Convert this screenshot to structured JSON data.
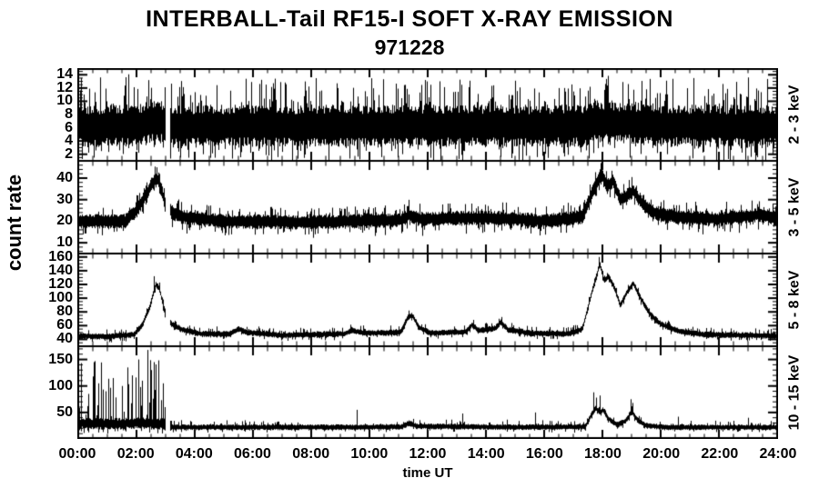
{
  "chart_data": {
    "type": "line",
    "title": "INTERBALL-Tail RF15-I SOFT X-RAY EMISSION",
    "subtitle": "971228",
    "ylabel": "count rate",
    "xlabel": "time UT",
    "background": "#ffffff",
    "trace_color": "#000000",
    "grid": false,
    "xlim_hours": [
      0,
      24
    ],
    "x_major_step_hours": 2,
    "x_minor_step_hours": 0.5,
    "x_tick_labels": [
      "00:00",
      "02:00",
      "04:00",
      "06:00",
      "08:00",
      "10:00",
      "12:00",
      "14:00",
      "16:00",
      "18:00",
      "20:00",
      "22:00",
      "24:00"
    ],
    "data_gaps_hours": [
      [
        2.97,
        3.14
      ]
    ],
    "panels": [
      {
        "band": "2 - 3 keV",
        "ylim": [
          1,
          15
        ],
        "yticks": [
          2,
          4,
          6,
          8,
          10,
          12,
          14
        ],
        "y_minor_step": 0.5,
        "noise_half": 3.2,
        "up_prob": 0.34,
        "up_scale": 4.8,
        "down_prob": 0.3,
        "down_scale": 3.0,
        "profile": [
          [
            0,
            6.2
          ],
          [
            2.1,
            6.4
          ],
          [
            2.5,
            7.0
          ],
          [
            2.9,
            6.8
          ],
          [
            3.2,
            6.3
          ],
          [
            17.4,
            6.3
          ],
          [
            17.9,
            6.9
          ],
          [
            18.4,
            6.7
          ],
          [
            19.0,
            6.8
          ],
          [
            19.5,
            6.4
          ],
          [
            24,
            6.2
          ]
        ],
        "spikes": []
      },
      {
        "band": "3 - 5 keV",
        "ylim": [
          5,
          48
        ],
        "yticks": [
          10,
          20,
          30,
          40
        ],
        "y_minor_step": 2,
        "noise_half": 3.4,
        "up_prob": 0.3,
        "up_scale": 4.5,
        "down_prob": 0.3,
        "down_scale": 4.5,
        "profile": [
          [
            0,
            20
          ],
          [
            1.6,
            20
          ],
          [
            2.0,
            25
          ],
          [
            2.3,
            32
          ],
          [
            2.55,
            38
          ],
          [
            2.7,
            40
          ],
          [
            2.85,
            34
          ],
          [
            3.0,
            27
          ],
          [
            3.2,
            24
          ],
          [
            3.6,
            22
          ],
          [
            5,
            20
          ],
          [
            8,
            19.5
          ],
          [
            9.5,
            20
          ],
          [
            11.1,
            20.5
          ],
          [
            11.35,
            23
          ],
          [
            11.7,
            21
          ],
          [
            13.4,
            21.5
          ],
          [
            14.5,
            21.5
          ],
          [
            16,
            20
          ],
          [
            17.3,
            22
          ],
          [
            17.6,
            32
          ],
          [
            17.95,
            42
          ],
          [
            18.15,
            36
          ],
          [
            18.35,
            39
          ],
          [
            18.6,
            30
          ],
          [
            18.85,
            32
          ],
          [
            19.05,
            34
          ],
          [
            19.35,
            28
          ],
          [
            19.8,
            24
          ],
          [
            20.5,
            22
          ],
          [
            22,
            21
          ],
          [
            23.4,
            23
          ],
          [
            24,
            21
          ]
        ],
        "spikes": [
          [
            17.93,
            47
          ],
          [
            2.68,
            45
          ]
        ]
      },
      {
        "band": "5 - 8 keV",
        "ylim": [
          30,
          165
        ],
        "yticks": [
          40,
          60,
          80,
          100,
          120,
          140,
          160
        ],
        "y_minor_step": 5,
        "noise_half": 4.5,
        "up_prob": 0.28,
        "up_scale": 7,
        "down_prob": 0.28,
        "down_scale": 5,
        "profile": [
          [
            0,
            45
          ],
          [
            1.0,
            44
          ],
          [
            1.9,
            47
          ],
          [
            2.2,
            62
          ],
          [
            2.45,
            88
          ],
          [
            2.65,
            120
          ],
          [
            2.78,
            113
          ],
          [
            3.0,
            70
          ],
          [
            3.2,
            62
          ],
          [
            3.5,
            55
          ],
          [
            4.2,
            48
          ],
          [
            5.2,
            48
          ],
          [
            5.5,
            55
          ],
          [
            5.8,
            50
          ],
          [
            7,
            46
          ],
          [
            9.1,
            48
          ],
          [
            9.4,
            53
          ],
          [
            9.8,
            49
          ],
          [
            11.05,
            50
          ],
          [
            11.3,
            72
          ],
          [
            11.45,
            75
          ],
          [
            11.7,
            57
          ],
          [
            12.1,
            49
          ],
          [
            13.3,
            51
          ],
          [
            13.5,
            61
          ],
          [
            13.75,
            53
          ],
          [
            14.3,
            56
          ],
          [
            14.5,
            65
          ],
          [
            14.75,
            54
          ],
          [
            15.5,
            49
          ],
          [
            16.8,
            48
          ],
          [
            17.3,
            55
          ],
          [
            17.6,
            105
          ],
          [
            17.9,
            150
          ],
          [
            18.05,
            125
          ],
          [
            18.2,
            132
          ],
          [
            18.4,
            115
          ],
          [
            18.6,
            90
          ],
          [
            18.85,
            110
          ],
          [
            19.05,
            122
          ],
          [
            19.3,
            100
          ],
          [
            19.6,
            78
          ],
          [
            20.0,
            62
          ],
          [
            20.6,
            52
          ],
          [
            21.5,
            47
          ],
          [
            24,
            45
          ]
        ],
        "spikes": [
          [
            17.88,
            160
          ],
          [
            2.6,
            132
          ],
          [
            11.35,
            82
          ]
        ]
      },
      {
        "band": "10 - 15 keV",
        "ylim": [
          0,
          175
        ],
        "yticks": [
          50,
          100,
          150
        ],
        "y_minor_step": 10,
        "noise_half": 5.5,
        "up_prob": 0.22,
        "up_scale": 9,
        "down_prob": 0.2,
        "down_scale": 6,
        "profile": [
          [
            0,
            30
          ],
          [
            1,
            28
          ],
          [
            2,
            30
          ],
          [
            3.0,
            28
          ],
          [
            3.15,
            22
          ],
          [
            9.4,
            22
          ],
          [
            11.1,
            23
          ],
          [
            11.35,
            30
          ],
          [
            11.6,
            24
          ],
          [
            15,
            22
          ],
          [
            17.4,
            23
          ],
          [
            17.6,
            45
          ],
          [
            17.75,
            58
          ],
          [
            17.9,
            50
          ],
          [
            18.0,
            55
          ],
          [
            18.2,
            38
          ],
          [
            18.5,
            26
          ],
          [
            18.8,
            35
          ],
          [
            19.0,
            52
          ],
          [
            19.2,
            35
          ],
          [
            19.5,
            25
          ],
          [
            20.2,
            22
          ],
          [
            24,
            22
          ]
        ],
        "spiky_region": {
          "t0": 0,
          "t1": 3.0,
          "half": 11,
          "up_prob": 0.5,
          "up_scale": 125,
          "up_pow": 2.0,
          "down_prob": 0.35,
          "down_scale": 10
        },
        "spikes": [
          [
            0.35,
            85
          ],
          [
            0.7,
            105
          ],
          [
            0.95,
            90
          ],
          [
            1.2,
            115
          ],
          [
            1.5,
            100
          ],
          [
            1.7,
            135
          ],
          [
            1.85,
            120
          ],
          [
            2.05,
            150
          ],
          [
            2.2,
            110
          ],
          [
            2.38,
            168
          ],
          [
            2.5,
            130
          ],
          [
            2.6,
            145
          ],
          [
            2.75,
            125
          ],
          [
            2.9,
            105
          ],
          [
            9.55,
            55
          ],
          [
            13.2,
            48
          ],
          [
            15.7,
            50
          ],
          [
            17.7,
            88
          ],
          [
            17.78,
            78
          ],
          [
            17.92,
            82
          ],
          [
            18.98,
            75
          ],
          [
            19.04,
            68
          ],
          [
            20.6,
            42
          ],
          [
            23.0,
            40
          ]
        ]
      }
    ]
  }
}
